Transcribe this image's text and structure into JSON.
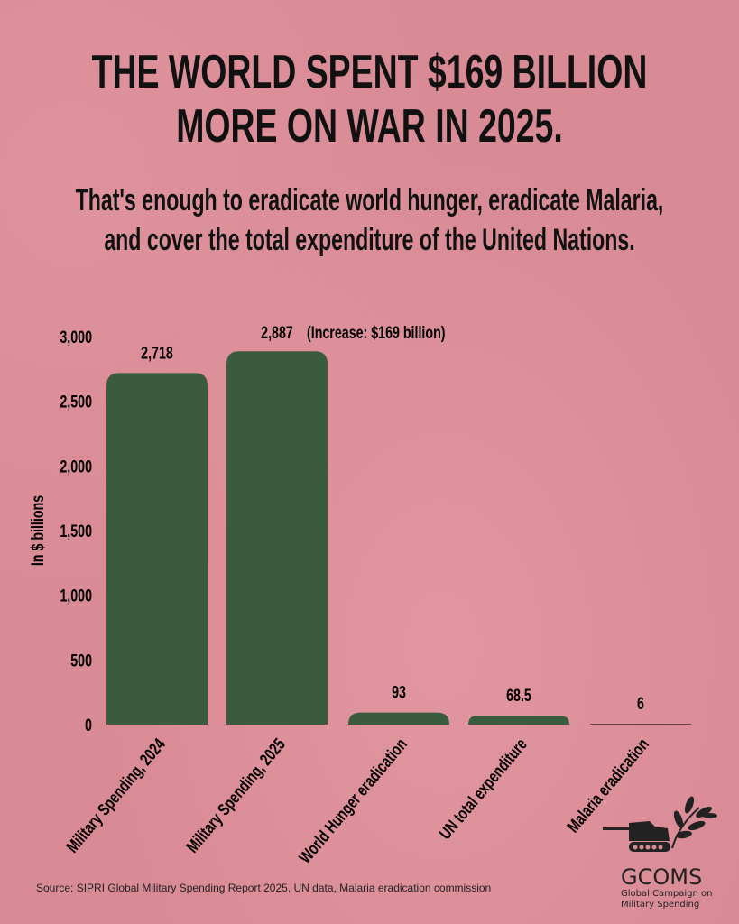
{
  "header": {
    "title_line1": "THE WORLD SPENT $169 BILLION",
    "title_line2": "MORE ON WAR IN 2025.",
    "subtitle_line1": "That's enough to eradicate world hunger, eradicate Malaria,",
    "subtitle_line2": "and cover the total expenditure of the United Nations."
  },
  "chart_data": {
    "type": "bar",
    "categories": [
      "Military Spending, 2024",
      "Military Spending, 2025",
      "World Hunger eradication",
      "UN total expenditure",
      "Malaria eradication"
    ],
    "values": [
      2718,
      2887,
      93,
      68.5,
      6
    ],
    "data_labels": [
      "2,718",
      "2,887",
      "93",
      "68.5",
      "6"
    ],
    "annotation": "(Increase: $169 billion)",
    "ylabel": "In $ billions",
    "ylim": [
      0,
      3000
    ],
    "yticks": [
      0,
      500,
      1000,
      1500,
      2000,
      2500,
      3000
    ],
    "ytick_labels": [
      "0",
      "500",
      "1,000",
      "1,500",
      "2,000",
      "2,500",
      "3,000"
    ],
    "grid": false,
    "bar_color": "#3a5c3c"
  },
  "footer": {
    "source": "Source: SIPRI Global Military Spending Report 2025, UN data, Malaria eradication commission",
    "logo_name": "GCOMS",
    "logo_sub_line1": "Global Campaign on",
    "logo_sub_line2": "Military Spending"
  }
}
